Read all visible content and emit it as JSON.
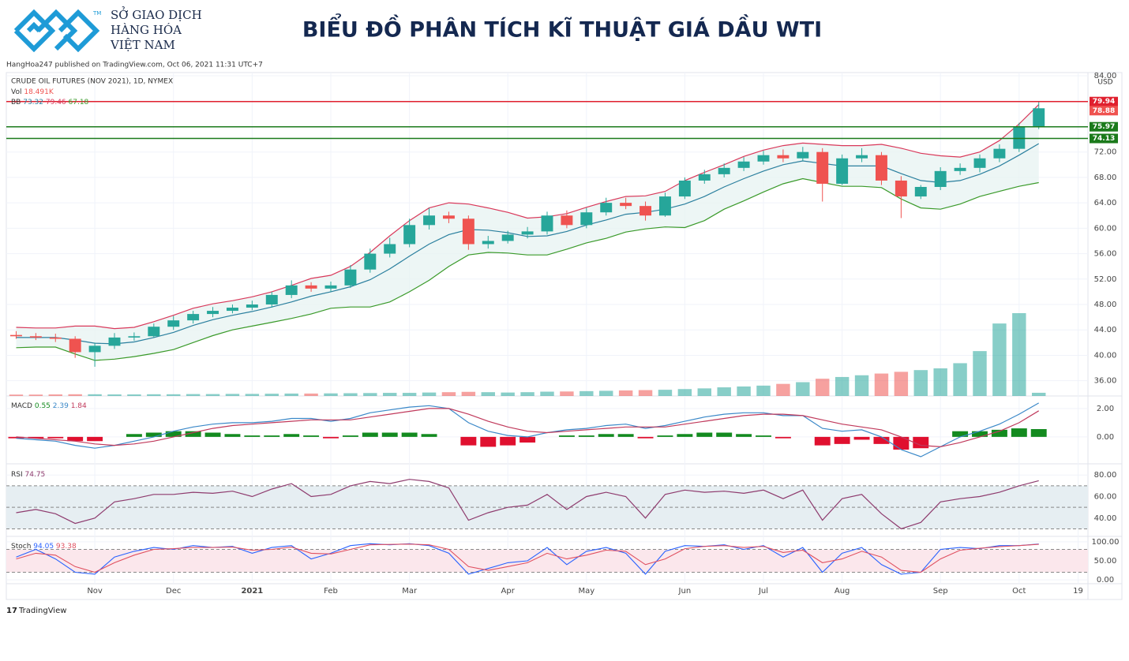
{
  "header": {
    "logo_lines": [
      "SỞ GIAO DỊCH",
      "HÀNG HÓA",
      "VIỆT NAM"
    ],
    "title": "BIỂU ĐỒ PHÂN TÍCH KĨ THUẬT GIÁ DẦU WTI",
    "published": "HangHoa247 published on TradingView.com, Oct 06, 2021 11:31 UTC+7"
  },
  "footer": "TradingView",
  "chart_data": {
    "type": "candlestick",
    "title": "CRUDE OIL FUTURES (NOV 2021), 1D, NYMEX",
    "currency": "USD",
    "up_color": "#26a69a",
    "down_color": "#ef5350",
    "categories": [
      null,
      null,
      null,
      null,
      "Nov",
      null,
      null,
      null,
      "Dec",
      null,
      null,
      null,
      "2021",
      null,
      null,
      null,
      "Feb",
      null,
      null,
      null,
      "Mar",
      null,
      null,
      null,
      null,
      "Apr",
      null,
      null,
      null,
      "May",
      null,
      null,
      null,
      null,
      "Jun",
      null,
      null,
      null,
      "Jul",
      null,
      null,
      null,
      "Aug",
      null,
      null,
      null,
      null,
      "Sep",
      null,
      null,
      null,
      "Oct",
      null,
      null,
      "19"
    ],
    "open": [
      43.2,
      43.0,
      42.8,
      42.6,
      40.5,
      41.5,
      42.8,
      43.0,
      44.5,
      45.5,
      46.5,
      47.0,
      47.5,
      48.0,
      49.5,
      51.0,
      50.5,
      51.0,
      53.5,
      56.0,
      57.5,
      60.5,
      62.0,
      61.5,
      57.5,
      58.0,
      59.0,
      59.5,
      62.0,
      60.5,
      62.5,
      64.0,
      63.5,
      62.0,
      65.0,
      67.5,
      68.5,
      69.5,
      70.5,
      71.5,
      71.0,
      72.0,
      67.0,
      71.0,
      71.5,
      67.5,
      65.0,
      66.5,
      69.0,
      69.5,
      71.0,
      72.5,
      76.0,
      null,
      null
    ],
    "high": [
      43.8,
      43.5,
      43.4,
      43.0,
      42.0,
      43.5,
      43.6,
      45.0,
      46.2,
      47.0,
      47.6,
      48.0,
      48.6,
      50.0,
      51.8,
      51.5,
      51.6,
      54.2,
      56.8,
      58.5,
      61.5,
      63.2,
      62.6,
      62.0,
      58.8,
      59.6,
      60.2,
      62.6,
      62.8,
      63.2,
      64.8,
      64.8,
      64.2,
      65.6,
      68.0,
      69.2,
      70.2,
      71.2,
      72.2,
      72.4,
      72.8,
      72.6,
      71.6,
      72.6,
      72.0,
      68.2,
      66.8,
      69.6,
      70.2,
      71.6,
      73.2,
      76.6,
      79.94,
      null,
      null
    ],
    "low": [
      42.6,
      42.4,
      42.1,
      39.6,
      38.2,
      41.0,
      42.3,
      42.8,
      44.0,
      45.0,
      46.0,
      46.6,
      47.1,
      47.5,
      49.0,
      50.0,
      50.0,
      50.6,
      53.0,
      55.4,
      57.0,
      59.8,
      60.8,
      56.6,
      56.8,
      57.6,
      58.4,
      59.0,
      60.0,
      60.0,
      62.0,
      63.0,
      61.2,
      61.8,
      64.6,
      67.0,
      68.0,
      69.0,
      70.0,
      70.4,
      70.6,
      64.2,
      66.8,
      70.4,
      66.8,
      61.6,
      64.6,
      66.0,
      68.4,
      68.8,
      70.4,
      72.0,
      75.6,
      null,
      null
    ],
    "close": [
      43.0,
      42.8,
      42.6,
      40.5,
      41.5,
      42.8,
      43.0,
      44.5,
      45.5,
      46.5,
      47.0,
      47.5,
      48.0,
      49.5,
      51.0,
      50.5,
      51.0,
      53.5,
      56.0,
      57.5,
      60.5,
      62.0,
      61.5,
      57.5,
      58.0,
      59.0,
      59.5,
      62.0,
      60.5,
      62.5,
      64.0,
      63.5,
      62.0,
      65.0,
      67.5,
      68.5,
      69.5,
      70.5,
      71.5,
      71.0,
      72.0,
      67.0,
      71.0,
      71.5,
      67.5,
      65.0,
      66.5,
      69.0,
      69.5,
      71.0,
      72.5,
      76.0,
      78.88,
      null,
      null
    ],
    "ylim": [
      33.6,
      84.5
    ],
    "yticks": [
      {
        "value": 36,
        "label": "36.00"
      },
      {
        "value": 40,
        "label": "40.00"
      },
      {
        "value": 44,
        "label": "44.00"
      },
      {
        "value": 48,
        "label": "48.00"
      },
      {
        "value": 52,
        "label": "52.00"
      },
      {
        "value": 56,
        "label": "56.00"
      },
      {
        "value": 60,
        "label": "60.00"
      },
      {
        "value": 64,
        "label": "64.00"
      },
      {
        "value": 68,
        "label": "68.00"
      },
      {
        "value": 72,
        "label": "72.00"
      },
      {
        "value": 76,
        "label": "76.00"
      },
      {
        "value": 80,
        "label": "80.00"
      },
      {
        "value": 84,
        "label": "84.00"
      }
    ],
    "grid": true,
    "levels": [
      {
        "value": 79.94,
        "color": "#e0202e"
      },
      {
        "value": 75.97,
        "color": "#1b7a1b"
      },
      {
        "value": 74.13,
        "color": "#1b7a1b"
      }
    ],
    "bollinger": {
      "name": "BB",
      "upper_color": "#d9385a",
      "mid_color": "#2a7f9e",
      "lower_color": "#3a9a2a",
      "fill": "#e8f4f2",
      "mid": [
        42.8,
        42.8,
        42.8,
        42.4,
        41.9,
        41.8,
        42.1,
        42.8,
        43.6,
        44.7,
        45.6,
        46.3,
        46.9,
        47.6,
        48.4,
        49.3,
        50.0,
        50.8,
        51.9,
        53.6,
        55.6,
        57.5,
        59.0,
        59.8,
        59.7,
        59.3,
        58.7,
        58.8,
        59.5,
        60.5,
        61.3,
        62.2,
        62.5,
        63.0,
        63.8,
        65.0,
        66.5,
        67.8,
        69.0,
        70.0,
        70.6,
        70.2,
        69.8,
        69.8,
        69.8,
        68.6,
        67.5,
        67.2,
        67.5,
        68.5,
        69.8,
        71.5,
        73.32,
        null,
        null
      ],
      "upper": [
        44.4,
        44.3,
        44.3,
        44.6,
        44.6,
        44.2,
        44.4,
        45.3,
        46.3,
        47.4,
        48.1,
        48.6,
        49.2,
        50.0,
        51.0,
        52.1,
        52.6,
        54.0,
        56.2,
        58.8,
        61.2,
        63.2,
        64.0,
        63.8,
        63.2,
        62.5,
        61.6,
        61.8,
        62.3,
        63.3,
        64.2,
        65.0,
        65.1,
        65.8,
        67.5,
        68.8,
        70.0,
        71.3,
        72.3,
        73.0,
        73.4,
        73.2,
        73.0,
        73.0,
        73.2,
        72.6,
        71.8,
        71.4,
        71.2,
        72.0,
        73.8,
        76.4,
        79.46,
        null,
        null
      ],
      "lower": [
        41.2,
        41.3,
        41.3,
        40.2,
        39.2,
        39.4,
        39.8,
        40.3,
        40.9,
        42.0,
        43.1,
        44.0,
        44.6,
        45.2,
        45.8,
        46.5,
        47.4,
        47.6,
        47.6,
        48.4,
        50.0,
        51.8,
        54.0,
        55.8,
        56.2,
        56.1,
        55.8,
        55.8,
        56.7,
        57.7,
        58.4,
        59.4,
        59.9,
        60.2,
        60.1,
        61.2,
        63.0,
        64.3,
        65.7,
        67.0,
        67.8,
        67.2,
        66.6,
        66.6,
        66.4,
        64.6,
        63.2,
        63.0,
        63.8,
        65.0,
        65.8,
        66.6,
        67.18,
        null,
        null
      ]
    },
    "volume": {
      "name": "Vol",
      "values": [
        8,
        8,
        9,
        10,
        10,
        9,
        9,
        10,
        10,
        11,
        11,
        12,
        12,
        13,
        14,
        14,
        15,
        16,
        17,
        18,
        18,
        20,
        22,
        24,
        22,
        20,
        22,
        25,
        26,
        28,
        30,
        32,
        34,
        36,
        40,
        44,
        50,
        55,
        60,
        70,
        80,
        100,
        110,
        120,
        130,
        140,
        150,
        160,
        190,
        260,
        420,
        480,
        18.491,
        null,
        null
      ],
      "value_labels": [
        null,
        null,
        null,
        null,
        null,
        null,
        null,
        null,
        null,
        null,
        null,
        null,
        null,
        null,
        null,
        null,
        null,
        null,
        null,
        null,
        null,
        null,
        null,
        null,
        null,
        null,
        null,
        null,
        null,
        null,
        null,
        null,
        null,
        null,
        null,
        null,
        null,
        null,
        null,
        null,
        null,
        null,
        null,
        null,
        null,
        null,
        null,
        null,
        null,
        null,
        null,
        null,
        "18.491K",
        null,
        null
      ]
    },
    "macd": {
      "name": "MACD",
      "macd_color": "#3a88c8",
      "signal_color": "#c0395b",
      "up_color": "#138a1f",
      "down_color": "#e0102f",
      "ylim": [
        -1.9,
        2.72
      ],
      "yticks": [
        {
          "value": 0,
          "label": "0.00"
        },
        {
          "value": 2,
          "label": "2.00"
        }
      ],
      "histogram": [
        -0.1,
        -0.1,
        -0.1,
        -0.3,
        -0.3,
        0.0,
        0.2,
        0.3,
        0.4,
        0.4,
        0.3,
        0.2,
        0.1,
        0.1,
        0.2,
        0.1,
        -0.1,
        0.1,
        0.3,
        0.3,
        0.3,
        0.2,
        0.0,
        -0.6,
        -0.7,
        -0.6,
        -0.4,
        0.0,
        0.1,
        0.1,
        0.2,
        0.2,
        -0.1,
        0.1,
        0.2,
        0.3,
        0.3,
        0.2,
        0.1,
        -0.1,
        0.0,
        -0.6,
        -0.5,
        -0.2,
        -0.5,
        -0.9,
        -0.8,
        0.0,
        0.4,
        0.4,
        0.5,
        0.6,
        0.55,
        null,
        null
      ],
      "macd": [
        -0.1,
        -0.2,
        -0.3,
        -0.6,
        -0.8,
        -0.6,
        -0.3,
        0.0,
        0.4,
        0.7,
        0.9,
        1.0,
        1.0,
        1.1,
        1.3,
        1.3,
        1.1,
        1.3,
        1.7,
        1.9,
        2.1,
        2.2,
        2.0,
        1.0,
        0.4,
        0.1,
        0.0,
        0.3,
        0.5,
        0.6,
        0.8,
        0.9,
        0.6,
        0.8,
        1.1,
        1.4,
        1.6,
        1.7,
        1.7,
        1.5,
        1.5,
        0.6,
        0.4,
        0.5,
        0.0,
        -0.9,
        -1.4,
        -0.7,
        0.0,
        0.4,
        0.9,
        1.6,
        2.39,
        null,
        null
      ],
      "signal": [
        0.0,
        -0.1,
        -0.2,
        -0.3,
        -0.5,
        -0.6,
        -0.5,
        -0.3,
        0.0,
        0.3,
        0.6,
        0.8,
        0.9,
        1.0,
        1.1,
        1.2,
        1.2,
        1.2,
        1.4,
        1.6,
        1.8,
        2.0,
        2.0,
        1.6,
        1.1,
        0.7,
        0.4,
        0.3,
        0.4,
        0.5,
        0.6,
        0.7,
        0.7,
        0.7,
        0.9,
        1.1,
        1.3,
        1.5,
        1.6,
        1.6,
        1.5,
        1.2,
        0.9,
        0.7,
        0.5,
        0.0,
        -0.6,
        -0.7,
        -0.4,
        0.0,
        0.4,
        1.0,
        1.84,
        null,
        null
      ]
    },
    "rsi": {
      "name": "RSI",
      "color": "#8e3b6e",
      "band_fill": "#e6eef2",
      "ylim": [
        23,
        87.5
      ],
      "levels": [
        70,
        50,
        30
      ],
      "yticks": [
        {
          "value": 40,
          "label": "40.00"
        },
        {
          "value": 60,
          "label": "60.00"
        },
        {
          "value": 80,
          "label": "80.00"
        }
      ],
      "values": [
        45,
        48,
        44,
        35,
        40,
        55,
        58,
        62,
        62,
        64,
        63,
        65,
        60,
        67,
        72,
        60,
        62,
        70,
        74,
        72,
        76,
        74,
        68,
        38,
        45,
        50,
        52,
        62,
        48,
        60,
        64,
        60,
        40,
        62,
        66,
        64,
        65,
        63,
        66,
        58,
        66,
        38,
        58,
        62,
        44,
        30,
        36,
        55,
        58,
        60,
        64,
        70,
        74.75,
        null,
        null
      ]
    },
    "stoch": {
      "name": "Stoch",
      "k_color": "#2962ff",
      "d_color": "#e05060",
      "band_fill": "#fbe7ec",
      "ylim": [
        -10,
        108
      ],
      "levels": [
        80,
        20
      ],
      "yticks": [
        {
          "value": 0,
          "label": "0.00"
        },
        {
          "value": 50,
          "label": "50.00"
        },
        {
          "value": 100,
          "label": "100.00"
        }
      ],
      "k": [
        60,
        80,
        55,
        20,
        15,
        60,
        75,
        85,
        80,
        90,
        85,
        88,
        70,
        85,
        90,
        55,
        70,
        90,
        95,
        92,
        95,
        90,
        70,
        15,
        30,
        45,
        50,
        85,
        40,
        75,
        85,
        70,
        15,
        75,
        90,
        88,
        92,
        80,
        90,
        60,
        85,
        20,
        70,
        85,
        40,
        15,
        20,
        80,
        85,
        82,
        90,
        90,
        94.05,
        null,
        null
      ],
      "d": [
        55,
        70,
        65,
        35,
        20,
        45,
        65,
        80,
        82,
        85,
        85,
        86,
        78,
        80,
        86,
        70,
        68,
        80,
        92,
        93,
        94,
        92,
        80,
        35,
        25,
        35,
        45,
        70,
        55,
        65,
        78,
        75,
        40,
        55,
        82,
        88,
        90,
        85,
        88,
        72,
        78,
        45,
        55,
        75,
        60,
        25,
        20,
        55,
        78,
        83,
        87,
        90,
        93.38,
        null,
        null
      ]
    }
  }
}
